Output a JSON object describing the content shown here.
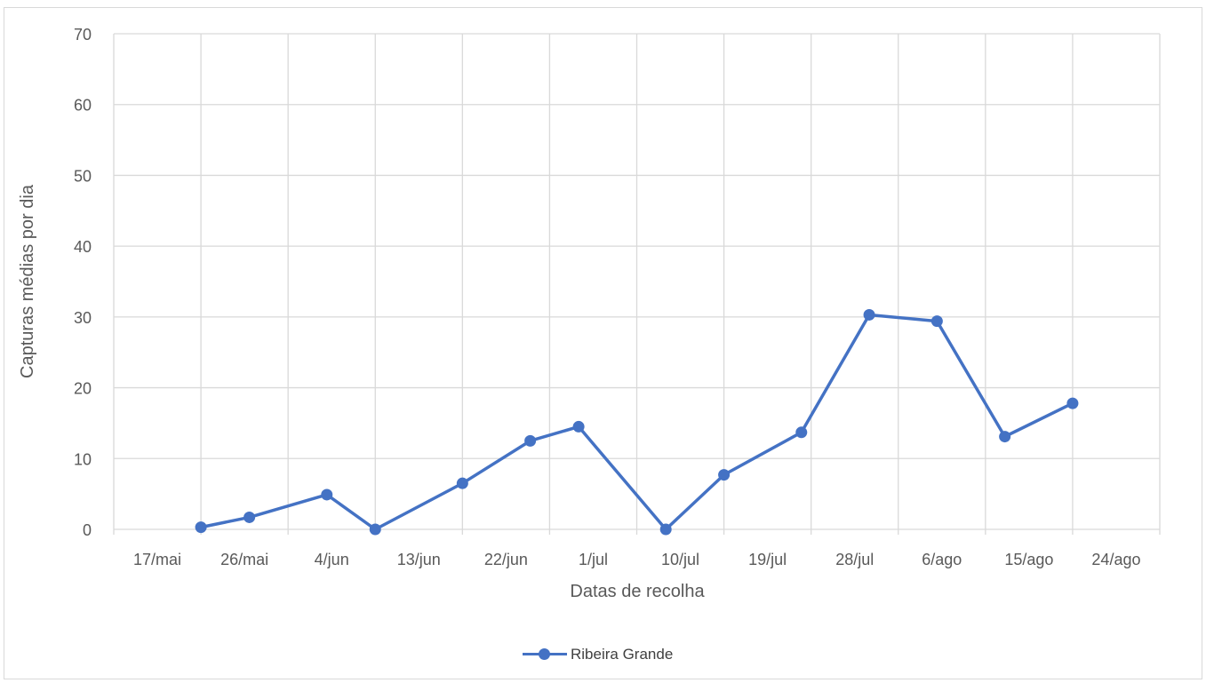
{
  "chart_data": {
    "type": "line",
    "xlabel": "Datas de recolha",
    "ylabel": "Capturas médias por dia",
    "ylim": [
      0,
      70
    ],
    "yticks": [
      0,
      10,
      20,
      30,
      40,
      50,
      60,
      70
    ],
    "x_tick_labels": [
      "17/mai",
      "26/mai",
      "4/jun",
      "13/jun",
      "22/jun",
      "1/jul",
      "10/jul",
      "19/jul",
      "28/jul",
      "6/ago",
      "15/ago",
      "24/ago"
    ],
    "grid": true,
    "legend_position": "bottom",
    "series_color": "#4472c4",
    "series": [
      {
        "name": "Ribeira Grande",
        "x": [
          "26/mai",
          "31/mai",
          "8/jun",
          "13/jun",
          "22/jun",
          "29/jun",
          "4/jul",
          "13/jul",
          "19/jul",
          "27/jul",
          "3/ago",
          "10/ago",
          "17/ago",
          "24/ago"
        ],
        "values": [
          0.3,
          1.7,
          4.9,
          0,
          6.5,
          12.5,
          14.5,
          0,
          7.7,
          13.7,
          30.3,
          29.4,
          13.1,
          17.8
        ]
      }
    ]
  }
}
